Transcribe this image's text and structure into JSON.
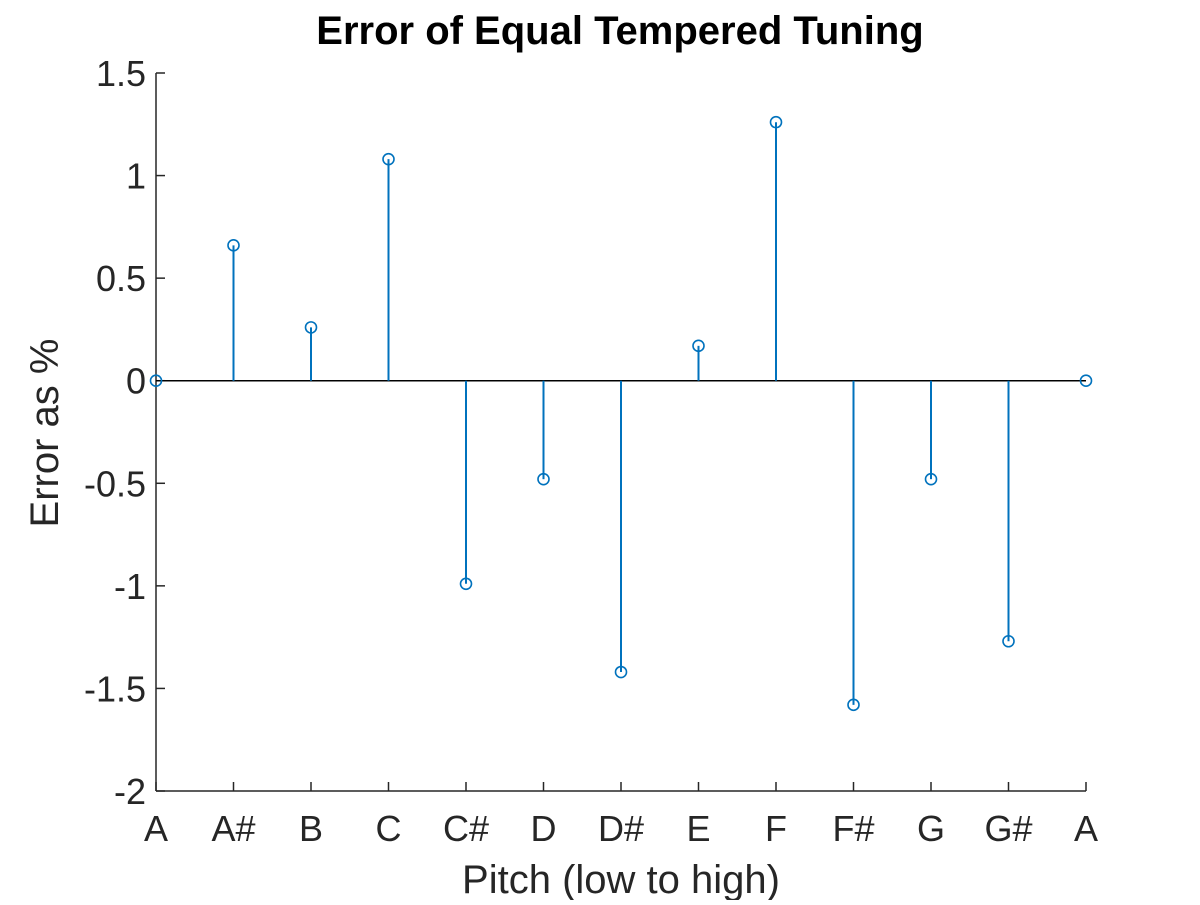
{
  "chart_data": {
    "type": "stem",
    "title": "Error of Equal Tempered Tuning",
    "xlabel": "Pitch (low to high)",
    "ylabel": "Error as %",
    "categories": [
      "A",
      "A#",
      "B",
      "C",
      "C#",
      "D",
      "D#",
      "E",
      "F",
      "F#",
      "G",
      "G#",
      "A"
    ],
    "values": [
      0,
      0.66,
      0.26,
      1.08,
      -0.99,
      -0.48,
      -1.42,
      0.17,
      1.26,
      -1.58,
      -0.48,
      -1.27,
      0
    ],
    "ylim": [
      -2,
      1.5
    ],
    "yticks": [
      -2,
      -1.5,
      -1,
      -0.5,
      0,
      0.5,
      1,
      1.5
    ],
    "ytick_labels": [
      "-2",
      "-1.5",
      "-1",
      "-0.5",
      "0",
      "0.5",
      "1",
      "1.5"
    ],
    "grid": false,
    "colors": {
      "series": "#0072BD",
      "axis": "#262626",
      "baseline": "#000000"
    }
  }
}
